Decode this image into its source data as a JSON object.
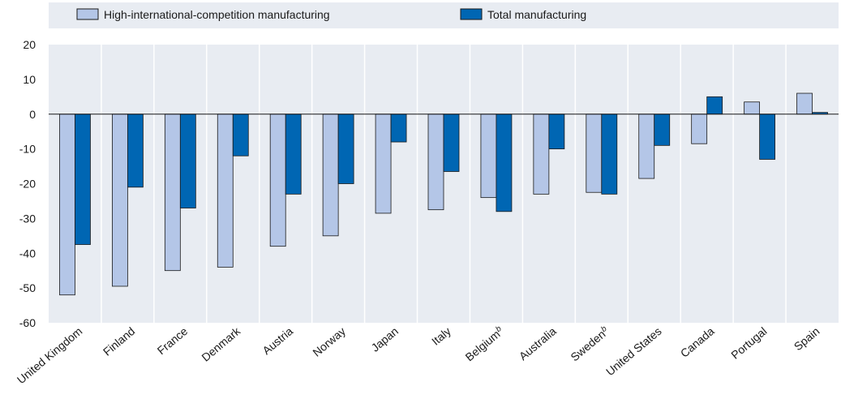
{
  "chart_data": {
    "type": "bar",
    "categories": [
      "United Kingdom",
      "Finland",
      "France",
      "Denmark",
      "Austria",
      "Norway",
      "Japan",
      "Italy",
      "Belgium",
      "Australia",
      "Sweden",
      "United States",
      "Canada",
      "Portugal",
      "Spain"
    ],
    "category_superscripts": [
      "",
      "",
      "",
      "",
      "",
      "",
      "",
      "",
      "b",
      "",
      "b",
      "",
      "",
      "",
      ""
    ],
    "series": [
      {
        "name": "High-international-competition manufacturing",
        "color": "#b4c6e7",
        "values": [
          -52,
          -49.5,
          -45,
          -44,
          -38,
          -35,
          -28.5,
          -27.5,
          -24,
          -23,
          -22.5,
          -18.5,
          -8.5,
          3.5,
          6
        ]
      },
      {
        "name": "Total manufacturing",
        "color": "#0066b3",
        "values": [
          -37.5,
          -21,
          -27,
          -12,
          -23,
          -20,
          -8,
          -16.5,
          -28,
          -10,
          -23,
          -9,
          5,
          -13,
          0.5
        ]
      }
    ],
    "yticks": [
      20,
      10,
      0,
      -10,
      -20,
      -30,
      -40,
      -50,
      -60
    ],
    "ylim": [
      -60,
      20
    ],
    "title": "",
    "xlabel": "",
    "ylabel": "",
    "legend_position": "top",
    "grid": false,
    "plot_background": "#e8ecf2",
    "legend_background": "#e8ecf2"
  }
}
